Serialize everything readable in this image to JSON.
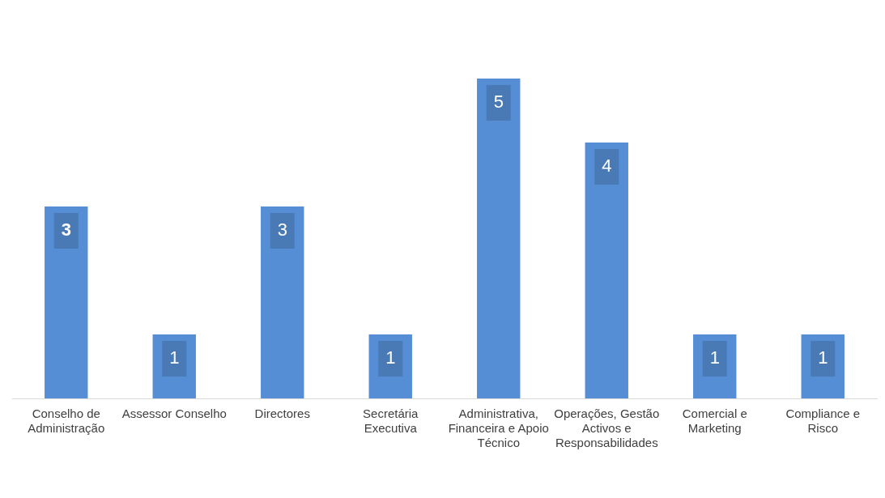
{
  "chart_data": {
    "type": "bar",
    "categories": [
      "Conselho de Administração",
      "Assessor Conselho",
      "Directores",
      "Secretária Executiva",
      "Administrativa, Financeira e Apoio Técnico",
      "Operações, Gestão Activos e Responsabilidades",
      "Comercial e Marketing",
      "Compliance e Risco"
    ],
    "values": [
      3,
      1,
      3,
      1,
      5,
      4,
      1,
      1
    ],
    "color": "#558ed5",
    "data_labels": true,
    "grid": false,
    "legend": false
  }
}
